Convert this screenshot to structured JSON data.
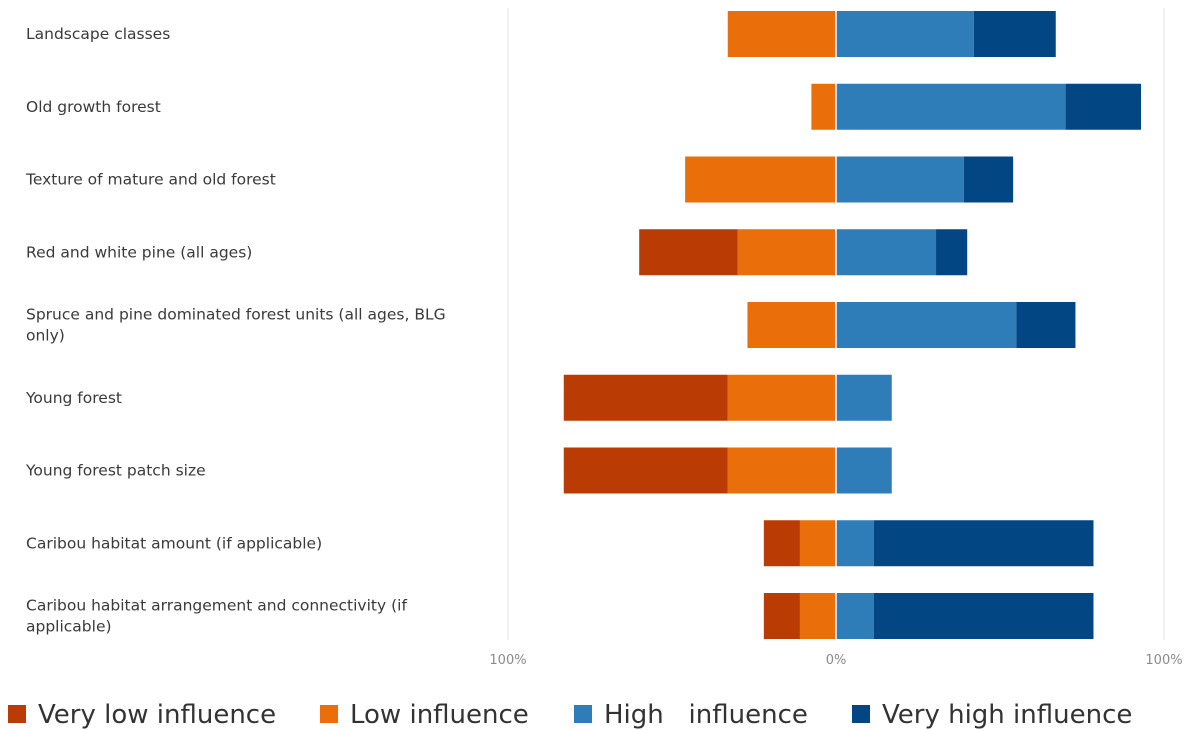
{
  "chart_data": {
    "type": "bar",
    "orientation": "horizontal",
    "stacking": "diverging",
    "categories": [
      "Landscape classes",
      "Old growth forest",
      "Texture of mature and old forest",
      "Red and white pine (all ages)",
      "Spruce and pine dominated forest units (all ages, BLG only)",
      "Young forest",
      "Young forest patch size",
      "Caribou habitat amount (if applicable)",
      "Caribou habitat arrangement and connectivity (if applicable)"
    ],
    "series": [
      {
        "name": "Very low influence",
        "side": "negative",
        "color": "#bb3b04",
        "values": [
          0,
          0,
          0,
          30,
          0,
          50,
          50,
          11,
          11
        ]
      },
      {
        "name": "Low influence",
        "side": "negative",
        "color": "#ea6f0b",
        "values": [
          33,
          7.5,
          46,
          30,
          27,
          33,
          33,
          11,
          11
        ]
      },
      {
        "name": "High   influence",
        "side": "positive",
        "color": "#2e7cb8",
        "values": [
          42,
          70,
          39,
          30.5,
          55,
          17,
          17,
          11.5,
          11.5
        ]
      },
      {
        "name": "Very high influence",
        "side": "positive",
        "color": "#024683",
        "values": [
          25,
          23,
          15,
          9.5,
          18,
          0,
          0,
          67,
          67
        ]
      }
    ],
    "xlim": [
      -100,
      100
    ],
    "tick_labels": [
      "100%",
      "0%",
      "100%"
    ],
    "legend": "bottom",
    "grid": true
  }
}
